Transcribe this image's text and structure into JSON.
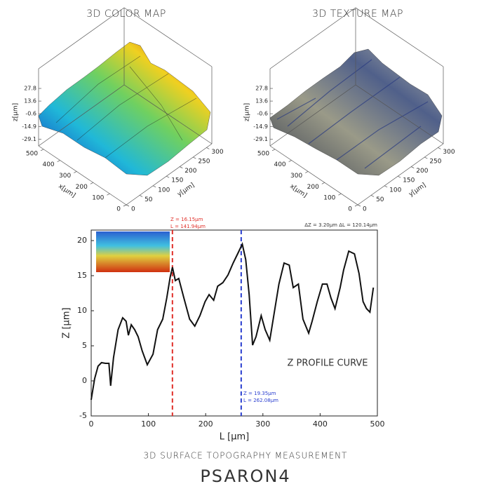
{
  "chart_data": [
    {
      "type": "surface",
      "title": "3D COLOR MAP",
      "xlabel": "x[µm]",
      "ylabel": "y[µm]",
      "zlabel": "z[µm]",
      "xlim": [
        0,
        530
      ],
      "ylim": [
        0,
        320
      ],
      "zlim": [
        -32,
        31
      ],
      "xticks": [
        0,
        100,
        200,
        300,
        400,
        500
      ],
      "yticks": [
        0,
        50,
        100,
        150,
        200,
        250,
        300
      ],
      "zticks": [
        -29.1,
        -14.9,
        -0.6,
        13.6,
        27.8
      ]
    },
    {
      "type": "surface",
      "title": "3D TEXTURE MAP",
      "xlabel": "x[µm]",
      "ylabel": "y[µm]",
      "zlabel": "z[µm]",
      "xlim": [
        0,
        530
      ],
      "ylim": [
        0,
        320
      ],
      "zlim": [
        -32,
        31
      ],
      "xticks": [
        0,
        100,
        200,
        300,
        400,
        500
      ],
      "yticks": [
        0,
        50,
        100,
        150,
        200,
        250,
        300
      ],
      "zticks": [
        -29.1,
        -14.9,
        -0.6,
        13.6,
        27.8
      ]
    },
    {
      "type": "line",
      "xlabel": "L [µm]",
      "ylabel": "Z [µm]",
      "xlim": [
        0,
        500
      ],
      "ylim": [
        -5,
        21.5
      ],
      "xticks": [
        0,
        100,
        200,
        300,
        400,
        500
      ],
      "yticks": [
        -5,
        0,
        5,
        10,
        15,
        20
      ],
      "x": [
        0,
        6,
        12,
        18,
        25,
        31,
        34,
        39,
        47,
        55,
        61,
        65,
        70,
        76,
        82,
        89,
        98,
        108,
        116,
        125,
        132,
        138,
        142,
        147,
        153,
        162,
        172,
        181,
        190,
        199,
        206,
        214,
        221,
        230,
        239,
        248,
        257,
        264,
        270,
        276,
        282,
        288,
        297,
        304,
        312,
        321,
        328,
        337,
        346,
        353,
        362,
        370,
        380,
        386,
        395,
        404,
        412,
        419,
        426,
        435,
        441,
        450,
        460,
        468,
        475,
        481,
        487,
        493
      ],
      "series": [
        {
          "color": "#111111",
          "values": [
            -2.7,
            0.3,
            2.1,
            2.6,
            2.5,
            2.5,
            -0.7,
            3.3,
            7.3,
            9,
            8.5,
            6.5,
            8,
            7.3,
            6.3,
            4.3,
            2.3,
            3.8,
            7.3,
            8.8,
            11.8,
            14.8,
            16.2,
            14.3,
            14.6,
            11.8,
            8.8,
            7.8,
            9.3,
            11.3,
            12.3,
            11.5,
            13.5,
            14,
            15.1,
            16.8,
            18.3,
            19.5,
            17.3,
            12.3,
            5.1,
            6.3,
            9.3,
            7.3,
            5.8,
            10.3,
            13.8,
            16.8,
            16.5,
            13.3,
            13.8,
            8.8,
            6.8,
            8.5,
            11.3,
            13.8,
            13.8,
            11.8,
            10.3,
            13.3,
            15.8,
            18.5,
            18.1,
            15.3,
            11.3,
            10.3,
            9.8,
            13.3
          ]
        }
      ],
      "markers": [
        {
          "x": 141.94,
          "color": "#e0302a"
        },
        {
          "x": 262.08,
          "color": "#2a3ed0"
        }
      ],
      "annotations": [
        {
          "text": "Z = 16.15µm",
          "color": "#e0302a"
        },
        {
          "text": "L = 141.94µm",
          "color": "#e0302a"
        },
        {
          "text": "ΔZ = 3.20µm ΔL = 120.14µm",
          "color": "#333333"
        },
        {
          "text": "Z = 19.35µm",
          "color": "#2a3ed0"
        },
        {
          "text": "L = 262.08µm",
          "color": "#2a3ed0"
        },
        {
          "text": "Z PROFILE CURVE",
          "color": "#333333"
        }
      ]
    }
  ],
  "footer": {
    "subtitle": "3D SURFACE TOPOGRAPHY MEASUREMENT",
    "brand": "PSARON4"
  }
}
